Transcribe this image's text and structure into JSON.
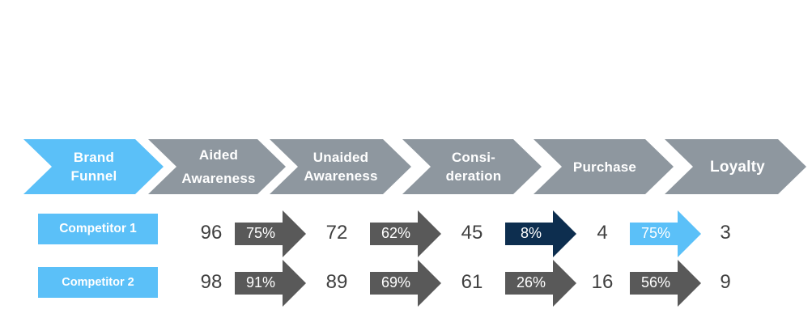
{
  "colors": {
    "brand_chevron": "#5bc0f8",
    "stage_chevron": "#8e979f",
    "competitor_label": "#5bc0f8",
    "arrow_default": "#595959",
    "arrow_dark": "#0d2e4f",
    "arrow_light": "#5bc0f8",
    "number_text": "#404040"
  },
  "funnel": {
    "brand_label": "Brand\nFunnel",
    "stages": [
      "Aided\nAwareness",
      "Unaided\nAwareness",
      "Consi-\nderation",
      "Purchase",
      "Loyalty"
    ]
  },
  "competitors": [
    {
      "label": "Competitor 1",
      "values": [
        "96",
        "72",
        "45",
        "4",
        "3"
      ],
      "conversions": [
        {
          "label": "75%",
          "style": "default"
        },
        {
          "label": "62%",
          "style": "default"
        },
        {
          "label": "8%",
          "style": "dark"
        },
        {
          "label": "75%",
          "style": "light"
        }
      ]
    },
    {
      "label": "Competitor 2",
      "values": [
        "98",
        "89",
        "61",
        "16",
        "9"
      ],
      "conversions": [
        {
          "label": "91%",
          "style": "default"
        },
        {
          "label": "69%",
          "style": "default"
        },
        {
          "label": "26%",
          "style": "default"
        },
        {
          "label": "56%",
          "style": "default"
        }
      ]
    }
  ]
}
